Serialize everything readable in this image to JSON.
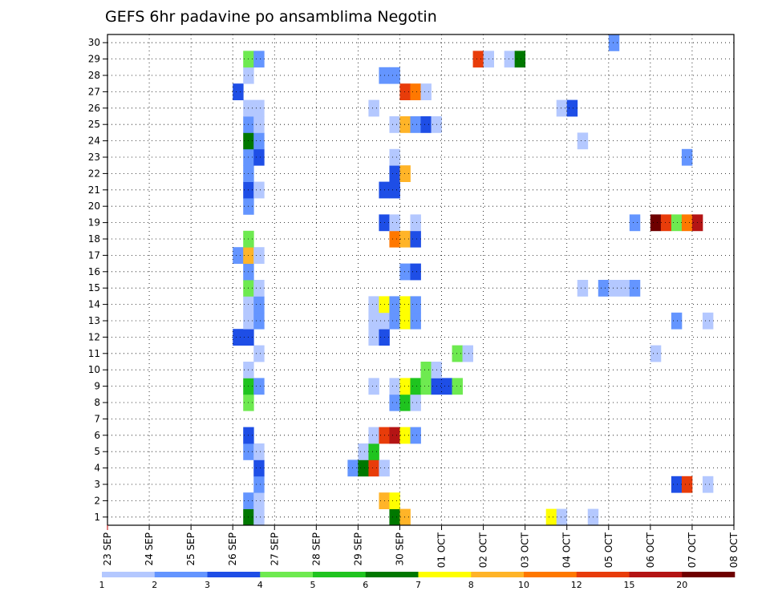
{
  "chart_data": {
    "type": "heatmap",
    "title": "GEFS 6hr padavine po ansamblima Negotin",
    "xlabel": "",
    "ylabel": "",
    "x_dates": [
      "23 SEP",
      "24 SEP",
      "25 SEP",
      "26 SEP",
      "27 SEP",
      "28 SEP",
      "29 SEP",
      "30 SEP",
      "01 OCT",
      "02 OCT",
      "03 OCT",
      "04 OCT",
      "05 OCT",
      "06 OCT",
      "07 OCT",
      "08 OCT"
    ],
    "x_range_days": [
      0,
      15
    ],
    "y_labels": [
      "1",
      "2",
      "3",
      "4",
      "5",
      "6",
      "7",
      "8",
      "9",
      "10",
      "11",
      "12",
      "13",
      "14",
      "15",
      "16",
      "17",
      "18",
      "19",
      "20",
      "21",
      "22",
      "23",
      "24",
      "25",
      "26",
      "27",
      "28",
      "29",
      "30"
    ],
    "y_range": [
      0.5,
      30.5
    ],
    "grid": true,
    "legend": "colorbar-bottom",
    "colorbar": {
      "labels": [
        "1",
        "2",
        "3",
        "4",
        "5",
        "6",
        "7",
        "8",
        "10",
        "12",
        "15",
        "20"
      ],
      "colors": [
        "#b4c8ff",
        "#6495ff",
        "#1e4ee6",
        "#6eea50",
        "#1fc41f",
        "#007800",
        "#ffff00",
        "#ffb428",
        "#ff7800",
        "#e83c0a",
        "#b41414",
        "#6e0000"
      ]
    },
    "cells": [
      [
        1,
        3.25,
        6
      ],
      [
        1,
        3.5,
        1
      ],
      [
        1,
        6.75,
        6
      ],
      [
        1,
        7.0,
        8
      ],
      [
        1,
        10.5,
        7
      ],
      [
        1,
        10.75,
        1
      ],
      [
        1,
        11.5,
        1
      ],
      [
        2,
        3.25,
        2
      ],
      [
        2,
        3.5,
        1
      ],
      [
        2,
        6.5,
        8
      ],
      [
        2,
        6.75,
        7
      ],
      [
        3,
        3.5,
        2
      ],
      [
        3,
        13.5,
        3
      ],
      [
        3,
        13.75,
        10
      ],
      [
        3,
        14.25,
        1
      ],
      [
        4,
        3.5,
        3
      ],
      [
        4,
        5.75,
        2
      ],
      [
        4,
        6.0,
        6
      ],
      [
        4,
        6.25,
        10
      ],
      [
        4,
        6.5,
        1
      ],
      [
        5,
        3.25,
        2
      ],
      [
        5,
        3.5,
        1
      ],
      [
        5,
        6.0,
        1
      ],
      [
        5,
        6.25,
        5
      ],
      [
        6,
        3.25,
        3
      ],
      [
        6,
        6.25,
        1
      ],
      [
        6,
        6.5,
        10
      ],
      [
        6,
        6.75,
        11
      ],
      [
        6,
        7.0,
        7
      ],
      [
        6,
        7.25,
        2
      ],
      [
        8,
        3.25,
        4
      ],
      [
        8,
        6.75,
        2
      ],
      [
        8,
        7.0,
        5
      ],
      [
        8,
        7.25,
        1
      ],
      [
        9,
        3.25,
        5
      ],
      [
        9,
        3.5,
        2
      ],
      [
        9,
        6.25,
        1
      ],
      [
        9,
        6.75,
        1
      ],
      [
        9,
        7.0,
        7
      ],
      [
        9,
        7.25,
        5
      ],
      [
        9,
        7.5,
        4
      ],
      [
        9,
        7.75,
        3
      ],
      [
        9,
        8.0,
        3
      ],
      [
        9,
        8.25,
        4
      ],
      [
        10,
        3.25,
        1
      ],
      [
        10,
        7.5,
        4
      ],
      [
        10,
        7.75,
        1
      ],
      [
        11,
        3.5,
        1
      ],
      [
        11,
        8.25,
        4
      ],
      [
        11,
        8.5,
        1
      ],
      [
        11,
        13.0,
        1
      ],
      [
        12,
        3.0,
        3
      ],
      [
        12,
        3.25,
        3
      ],
      [
        12,
        6.25,
        1
      ],
      [
        12,
        6.5,
        3
      ],
      [
        13,
        3.25,
        1
      ],
      [
        13,
        3.5,
        2
      ],
      [
        13,
        6.25,
        1
      ],
      [
        13,
        6.5,
        1
      ],
      [
        13,
        6.75,
        2
      ],
      [
        13,
        7.0,
        7
      ],
      [
        13,
        7.25,
        2
      ],
      [
        13,
        13.5,
        2
      ],
      [
        13,
        14.25,
        1
      ],
      [
        14,
        3.25,
        1
      ],
      [
        14,
        3.5,
        2
      ],
      [
        14,
        6.25,
        1
      ],
      [
        14,
        6.5,
        7
      ],
      [
        14,
        6.75,
        2
      ],
      [
        14,
        7.0,
        7
      ],
      [
        14,
        7.25,
        2
      ],
      [
        15,
        3.25,
        4
      ],
      [
        15,
        3.5,
        1
      ],
      [
        15,
        11.25,
        1
      ],
      [
        15,
        11.75,
        2
      ],
      [
        15,
        12.0,
        1
      ],
      [
        15,
        12.25,
        1
      ],
      [
        15,
        12.5,
        2
      ],
      [
        16,
        3.25,
        2
      ],
      [
        16,
        7.0,
        2
      ],
      [
        16,
        7.25,
        3
      ],
      [
        17,
        3.0,
        2
      ],
      [
        17,
        3.25,
        8
      ],
      [
        17,
        3.5,
        1
      ],
      [
        18,
        3.25,
        4
      ],
      [
        18,
        6.75,
        9
      ],
      [
        18,
        7.0,
        8
      ],
      [
        18,
        7.25,
        3
      ],
      [
        19,
        6.5,
        3
      ],
      [
        19,
        6.75,
        1
      ],
      [
        19,
        7.25,
        1
      ],
      [
        19,
        12.5,
        2
      ],
      [
        19,
        13.0,
        12
      ],
      [
        19,
        13.25,
        10
      ],
      [
        19,
        13.5,
        4
      ],
      [
        19,
        13.75,
        9
      ],
      [
        19,
        14.0,
        11
      ],
      [
        20,
        3.25,
        2
      ],
      [
        21,
        3.25,
        3
      ],
      [
        21,
        3.5,
        1
      ],
      [
        21,
        6.5,
        3
      ],
      [
        21,
        6.75,
        3
      ],
      [
        22,
        3.25,
        2
      ],
      [
        22,
        6.75,
        3
      ],
      [
        22,
        7.0,
        8
      ],
      [
        23,
        3.25,
        2
      ],
      [
        23,
        3.5,
        3
      ],
      [
        23,
        6.75,
        1
      ],
      [
        23,
        13.75,
        2
      ],
      [
        24,
        3.25,
        6
      ],
      [
        24,
        3.5,
        2
      ],
      [
        24,
        11.25,
        1
      ],
      [
        25,
        3.25,
        2
      ],
      [
        25,
        3.5,
        1
      ],
      [
        25,
        6.75,
        1
      ],
      [
        25,
        7.0,
        8
      ],
      [
        25,
        7.25,
        2
      ],
      [
        25,
        7.5,
        3
      ],
      [
        25,
        7.75,
        1
      ],
      [
        26,
        3.25,
        1
      ],
      [
        26,
        3.5,
        1
      ],
      [
        26,
        6.25,
        1
      ],
      [
        26,
        10.75,
        1
      ],
      [
        26,
        11.0,
        3
      ],
      [
        27,
        3.0,
        3
      ],
      [
        27,
        7.0,
        10
      ],
      [
        27,
        7.25,
        9
      ],
      [
        27,
        7.5,
        1
      ],
      [
        28,
        3.25,
        1
      ],
      [
        28,
        6.5,
        2
      ],
      [
        28,
        6.75,
        2
      ],
      [
        29,
        3.25,
        4
      ],
      [
        29,
        3.5,
        2
      ],
      [
        29,
        8.75,
        10
      ],
      [
        29,
        9.0,
        1
      ],
      [
        29,
        9.5,
        1
      ],
      [
        29,
        9.75,
        6
      ],
      [
        30,
        12.0,
        2
      ]
    ]
  }
}
